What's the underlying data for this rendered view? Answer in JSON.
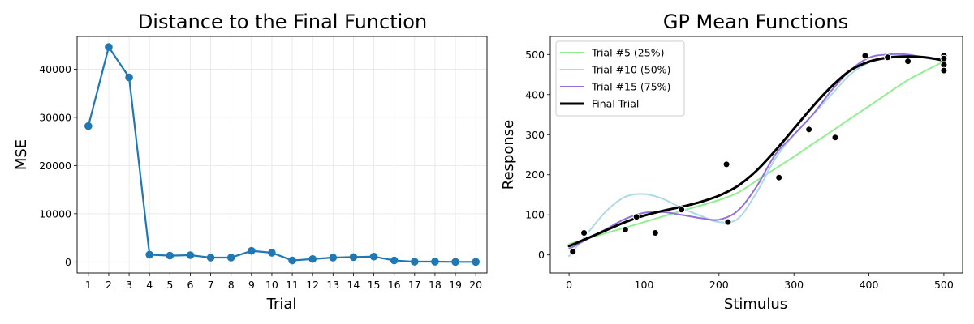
{
  "chart_data": [
    {
      "type": "line",
      "title": "Distance to the Final Function",
      "xlabel": "Trial",
      "ylabel": "MSE",
      "xlim": [
        0.45,
        20.55
      ],
      "ylim": [
        -2300,
        46800
      ],
      "grid": true,
      "color": "#1f77b4",
      "x": [
        1,
        2,
        3,
        4,
        5,
        6,
        7,
        8,
        9,
        10,
        11,
        12,
        13,
        14,
        15,
        16,
        17,
        18,
        19,
        20
      ],
      "xticks": [
        "1",
        "2",
        "3",
        "4",
        "5",
        "6",
        "7",
        "8",
        "9",
        "10",
        "11",
        "12",
        "13",
        "14",
        "15",
        "16",
        "17",
        "18",
        "19",
        "20"
      ],
      "yticks": [
        0,
        10000,
        20000,
        30000,
        40000
      ],
      "ytick_labels": [
        "0",
        "10000",
        "20000",
        "30000",
        "40000"
      ],
      "values": [
        28200,
        44600,
        38300,
        1500,
        1300,
        1400,
        900,
        900,
        2300,
        1900,
        300,
        600,
        900,
        1000,
        1100,
        300,
        50,
        50,
        0,
        0
      ]
    },
    {
      "type": "line",
      "title": "GP Mean Functions",
      "xlabel": "Stimulus",
      "ylabel": "Response",
      "xlim": [
        -25,
        525
      ],
      "ylim": [
        -45,
        545
      ],
      "grid": false,
      "legend_position": "top-left",
      "xticks": [
        0,
        100,
        200,
        300,
        400,
        500
      ],
      "xtick_labels": [
        "0",
        "100",
        "200",
        "300",
        "400",
        "500"
      ],
      "yticks": [
        0,
        100,
        200,
        300,
        400,
        500
      ],
      "ytick_labels": [
        "0",
        "100",
        "200",
        "300",
        "400",
        "500"
      ],
      "x": [
        0,
        25,
        50,
        75,
        100,
        125,
        150,
        175,
        200,
        225,
        250,
        275,
        300,
        325,
        350,
        375,
        400,
        425,
        450,
        475,
        500
      ],
      "series": [
        {
          "name": "Trial #5 (25%)",
          "color": "#90ee90",
          "width": 2,
          "values": [
            27,
            41,
            55,
            68,
            82,
            96,
            110,
            123,
            137,
            155,
            185,
            215,
            245,
            277,
            308,
            340,
            371,
            403,
            434,
            459,
            483
          ]
        },
        {
          "name": "Trial #10 (50%)",
          "color": "#add8e6",
          "width": 2,
          "values": [
            -3,
            55,
            110,
            145,
            152,
            140,
            117,
            98,
            82,
            90,
            155,
            240,
            300,
            350,
            400,
            450,
            480,
            495,
            496,
            492,
            490
          ]
        },
        {
          "name": "Trial #15 (75%)",
          "color": "#9370db",
          "width": 2,
          "values": [
            15,
            40,
            65,
            90,
            105,
            107,
            100,
            92,
            88,
            110,
            170,
            250,
            300,
            350,
            410,
            460,
            492,
            500,
            500,
            492,
            485
          ]
        },
        {
          "name": "Final Trial",
          "color": "#000000",
          "width": 3,
          "values": [
            22,
            42,
            62,
            82,
            98,
            110,
            120,
            132,
            148,
            172,
            210,
            260,
            315,
            370,
            420,
            460,
            482,
            492,
            495,
            493,
            485
          ]
        }
      ],
      "points": {
        "x": [
          5,
          20,
          75,
          90,
          115,
          150,
          210,
          212,
          280,
          320,
          355,
          395,
          425,
          452,
          500,
          500,
          500,
          500
        ],
        "y": [
          8,
          55,
          63,
          95,
          55,
          113,
          226,
          82,
          193,
          313,
          293,
          497,
          493,
          483,
          497,
          490,
          474,
          460
        ]
      }
    }
  ]
}
